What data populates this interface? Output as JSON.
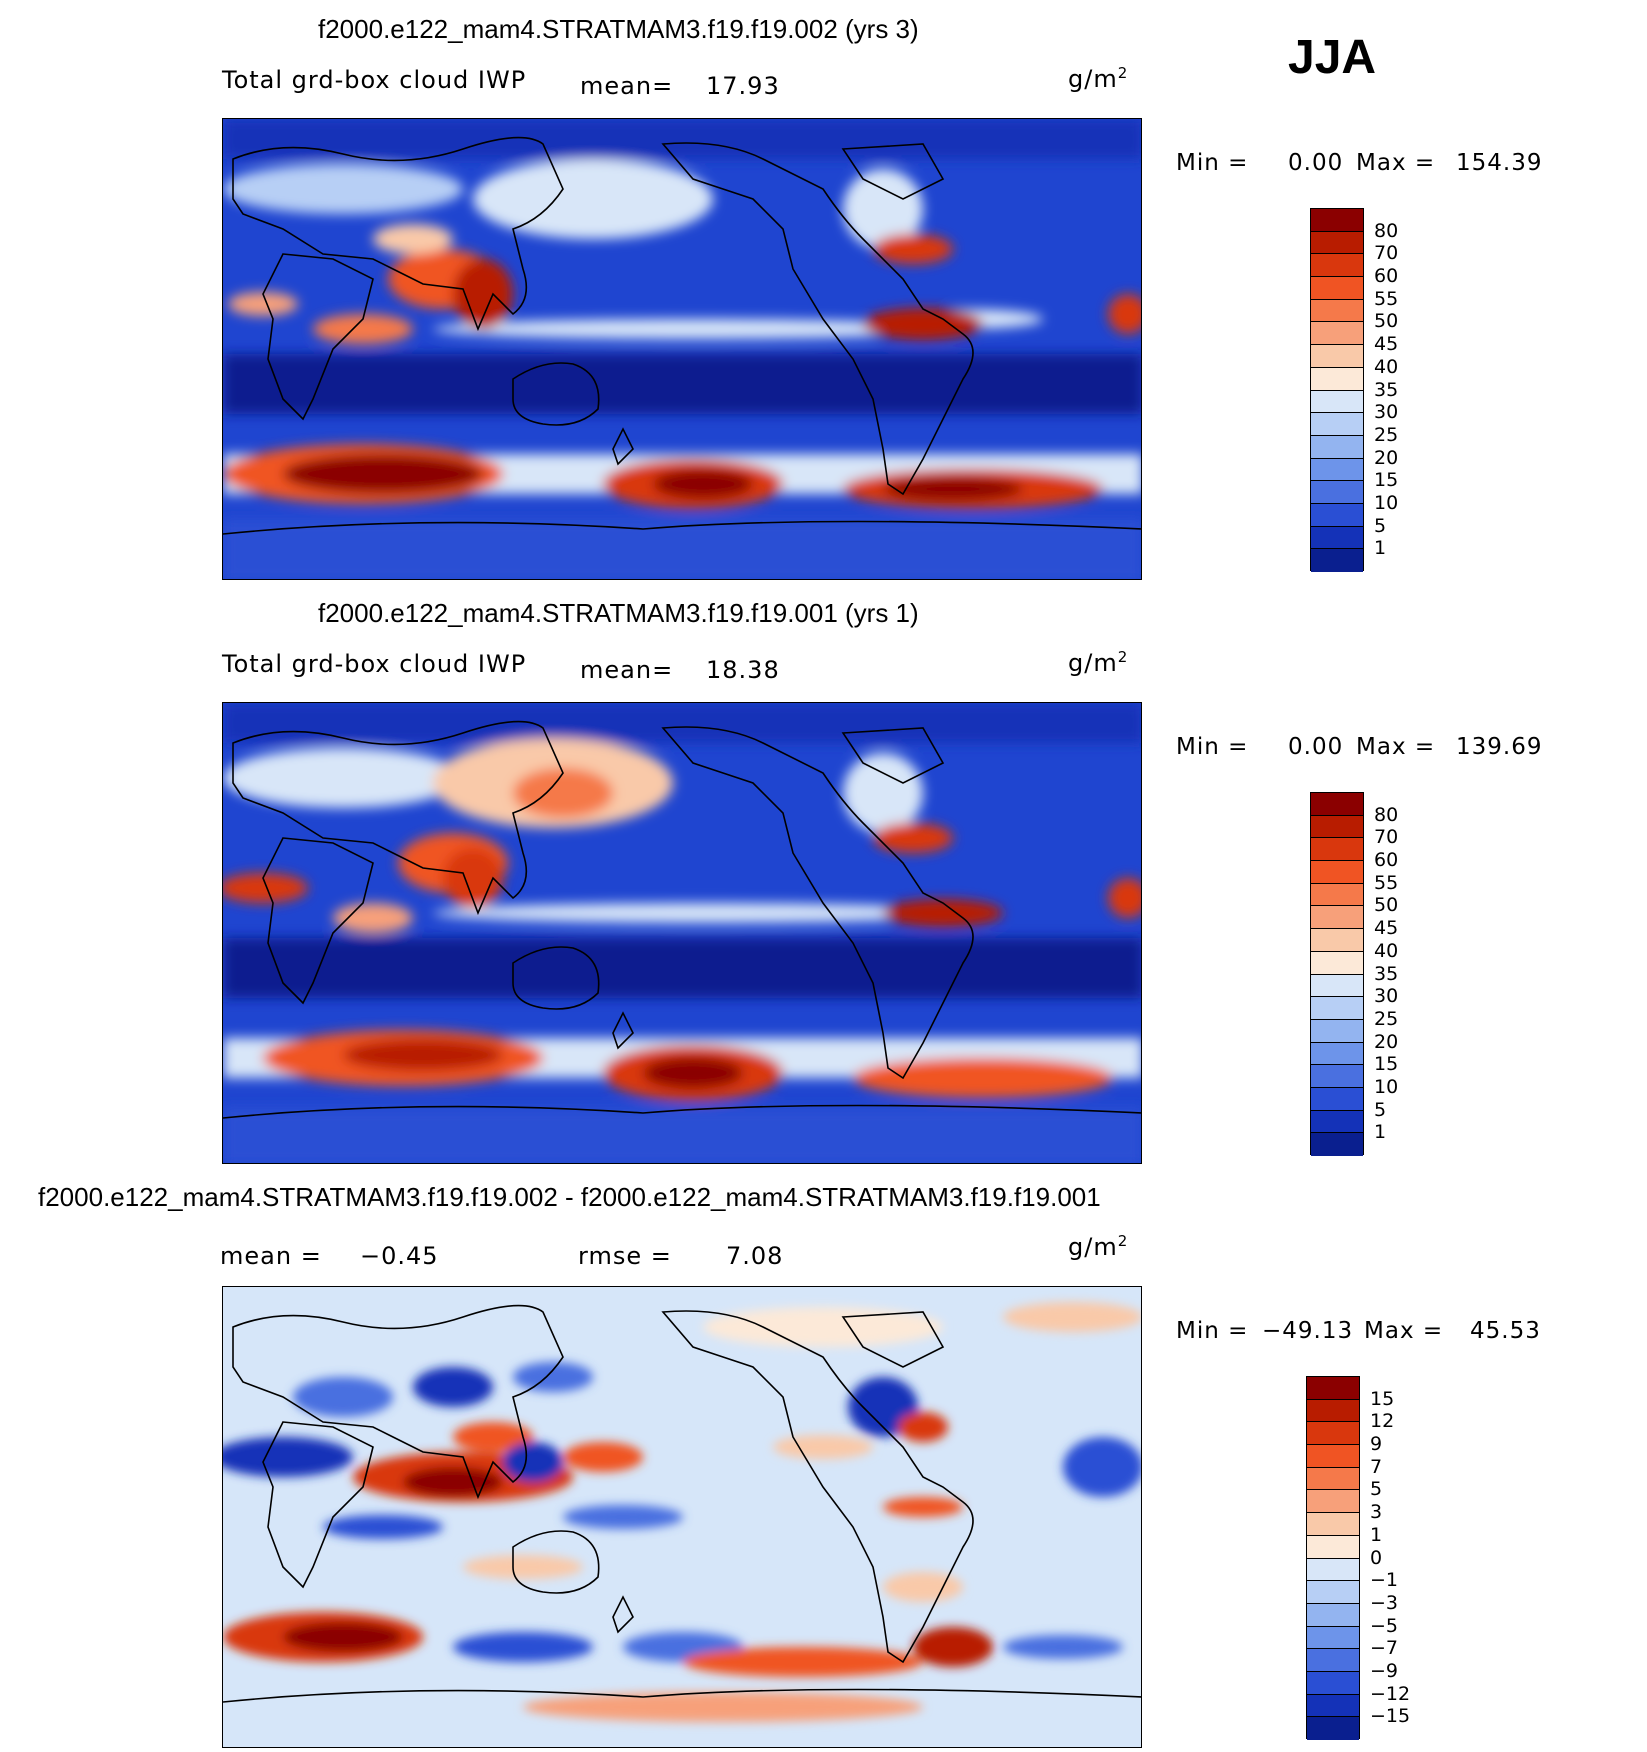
{
  "season": "JJA",
  "panels": [
    {
      "title": "f2000.e122_mam4.STRATMAM3.f19.f19.002 (yrs 3)",
      "variable": "Total grd-box cloud IWP",
      "mean_label": "mean=",
      "mean_value": "17.93",
      "units": "g/m",
      "units_sup": "2",
      "min_label": "Min =",
      "min_value": "0.00",
      "max_label": "Max =",
      "max_value": "154.39",
      "colorbar_labels": [
        "80",
        "70",
        "60",
        "55",
        "50",
        "45",
        "40",
        "35",
        "30",
        "25",
        "20",
        "15",
        "10",
        "5",
        "1"
      ],
      "colorbar_colors": [
        "#8b0000",
        "#b81c00",
        "#d9370d",
        "#f05423",
        "#f5794a",
        "#f7a07a",
        "#f9c9a9",
        "#fce9d8",
        "#d8e6f8",
        "#b7cff5",
        "#93b4f0",
        "#6d94ea",
        "#4a70e0",
        "#2a4fd4",
        "#1432b8",
        "#0a1f8f"
      ]
    },
    {
      "title": "f2000.e122_mam4.STRATMAM3.f19.f19.001 (yrs 1)",
      "variable": "Total grd-box cloud IWP",
      "mean_label": "mean=",
      "mean_value": "18.38",
      "units": "g/m",
      "units_sup": "2",
      "min_label": "Min =",
      "min_value": "0.00",
      "max_label": "Max =",
      "max_value": "139.69",
      "colorbar_labels": [
        "80",
        "70",
        "60",
        "55",
        "50",
        "45",
        "40",
        "35",
        "30",
        "25",
        "20",
        "15",
        "10",
        "5",
        "1"
      ],
      "colorbar_colors": [
        "#8b0000",
        "#b81c00",
        "#d9370d",
        "#f05423",
        "#f5794a",
        "#f7a07a",
        "#f9c9a9",
        "#fce9d8",
        "#d8e6f8",
        "#b7cff5",
        "#93b4f0",
        "#6d94ea",
        "#4a70e0",
        "#2a4fd4",
        "#1432b8",
        "#0a1f8f"
      ]
    },
    {
      "title": "f2000.e122_mam4.STRATMAM3.f19.f19.002 - f2000.e122_mam4.STRATMAM3.f19.f19.001",
      "mean_label": "mean =",
      "mean_value": "−0.45",
      "rmse_label": "rmse =",
      "rmse_value": "7.08",
      "units": "g/m",
      "units_sup": "2",
      "min_label": "Min =",
      "min_value": "−49.13",
      "max_label": "Max =",
      "max_value": "45.53",
      "colorbar_labels": [
        "15",
        "12",
        "9",
        "7",
        "5",
        "3",
        "1",
        "0",
        "−1",
        "−3",
        "−5",
        "−7",
        "−9",
        "−12",
        "−15"
      ],
      "colorbar_colors": [
        "#8b0000",
        "#b81c00",
        "#d9370d",
        "#f05423",
        "#f5794a",
        "#f7a07a",
        "#f9c9a9",
        "#fce9d8",
        "#d8e6f8",
        "#b7cff5",
        "#93b4f0",
        "#6d94ea",
        "#4a70e0",
        "#2a4fd4",
        "#1432b8",
        "#0a1f8f"
      ]
    }
  ],
  "map_fill_colors": {
    "bg_abs": "#1f45d0",
    "bg_diff": "#d6e6f9"
  }
}
